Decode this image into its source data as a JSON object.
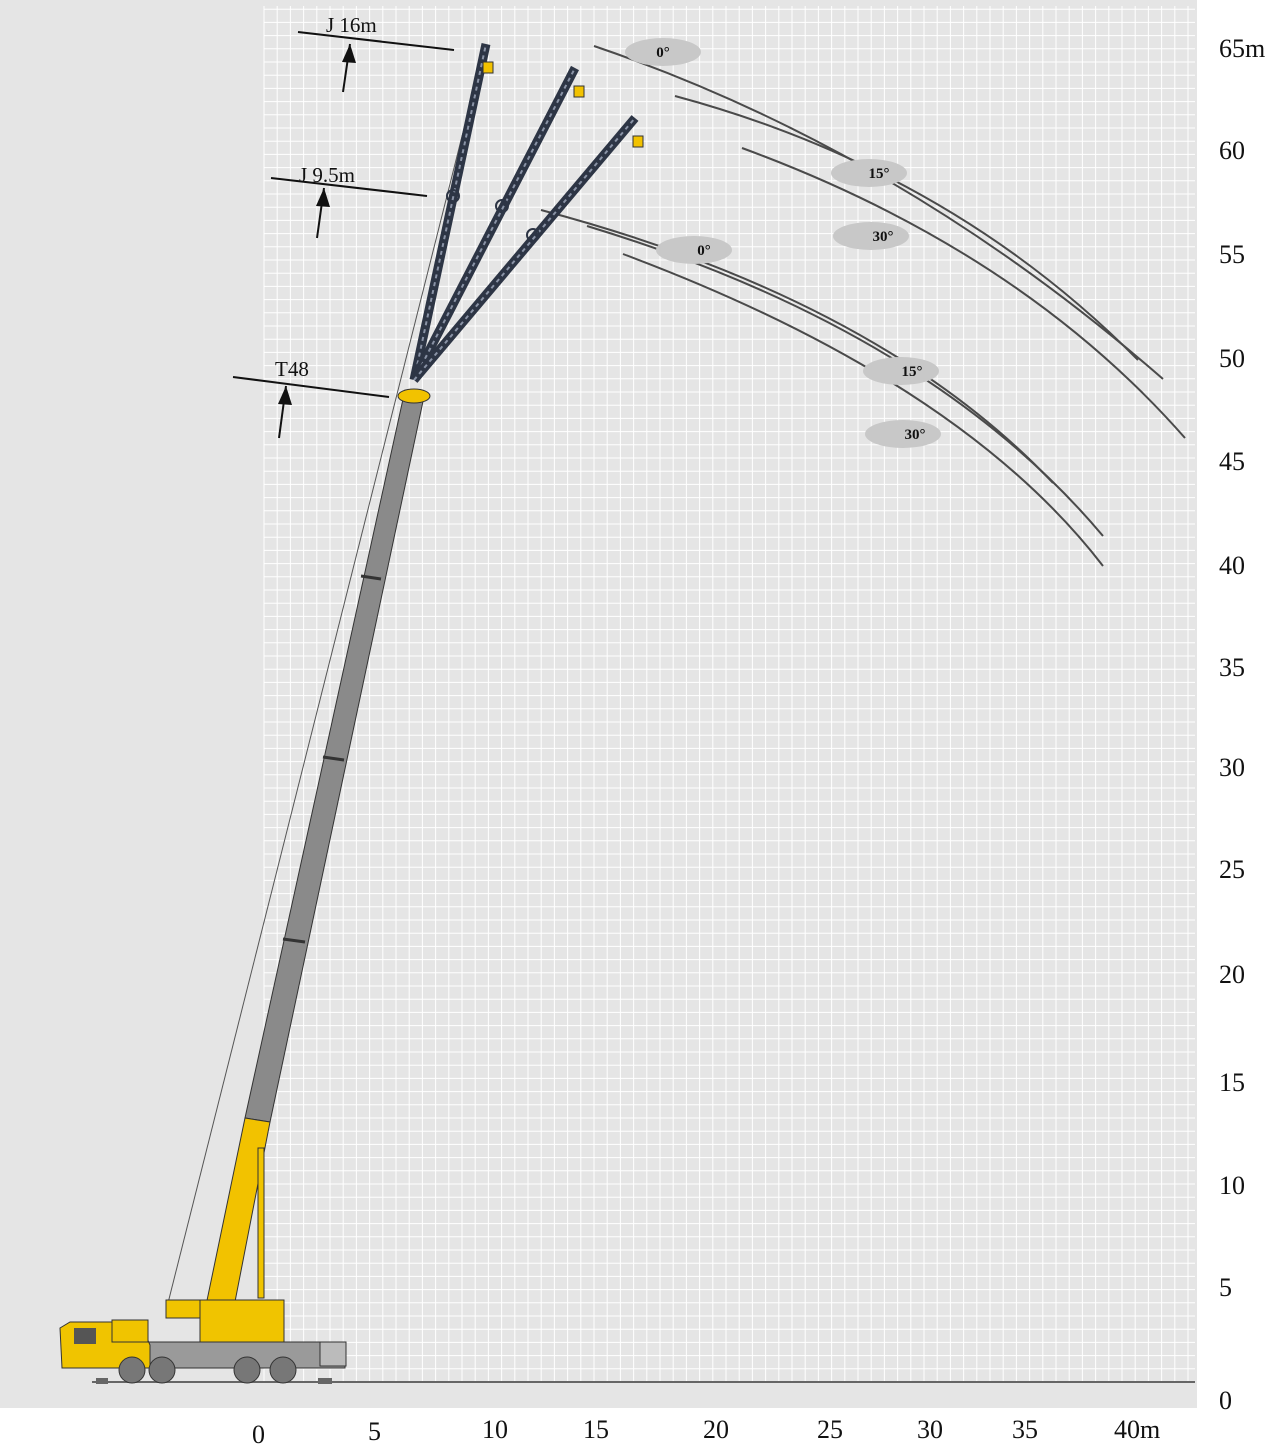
{
  "diagram": {
    "x_ticks": [
      "0",
      "5",
      "10",
      "15",
      "20",
      "25",
      "30",
      "35",
      "40m"
    ],
    "y_ticks": [
      "0",
      "5",
      "10",
      "15",
      "20",
      "25",
      "30",
      "35",
      "40",
      "45",
      "50",
      "55",
      "60",
      "65m"
    ],
    "section_labels": {
      "t48": "T48",
      "j95": "J 9.5m",
      "j16": "J 16m"
    },
    "offset_angles": {
      "j16": [
        "0°",
        "15°",
        "30°"
      ],
      "j95": [
        "0°",
        "15°",
        "30°"
      ]
    },
    "colors": {
      "background_panel": "#e5e5e5",
      "grid_line": "#ffffff",
      "main_boom": "#8a8a8a",
      "base_boom": "#f2c200",
      "jib": "#2d3545",
      "curve": "#4a4a4a",
      "angle_badge": "#c8c8c8",
      "crane_body": "#f0c400"
    }
  }
}
